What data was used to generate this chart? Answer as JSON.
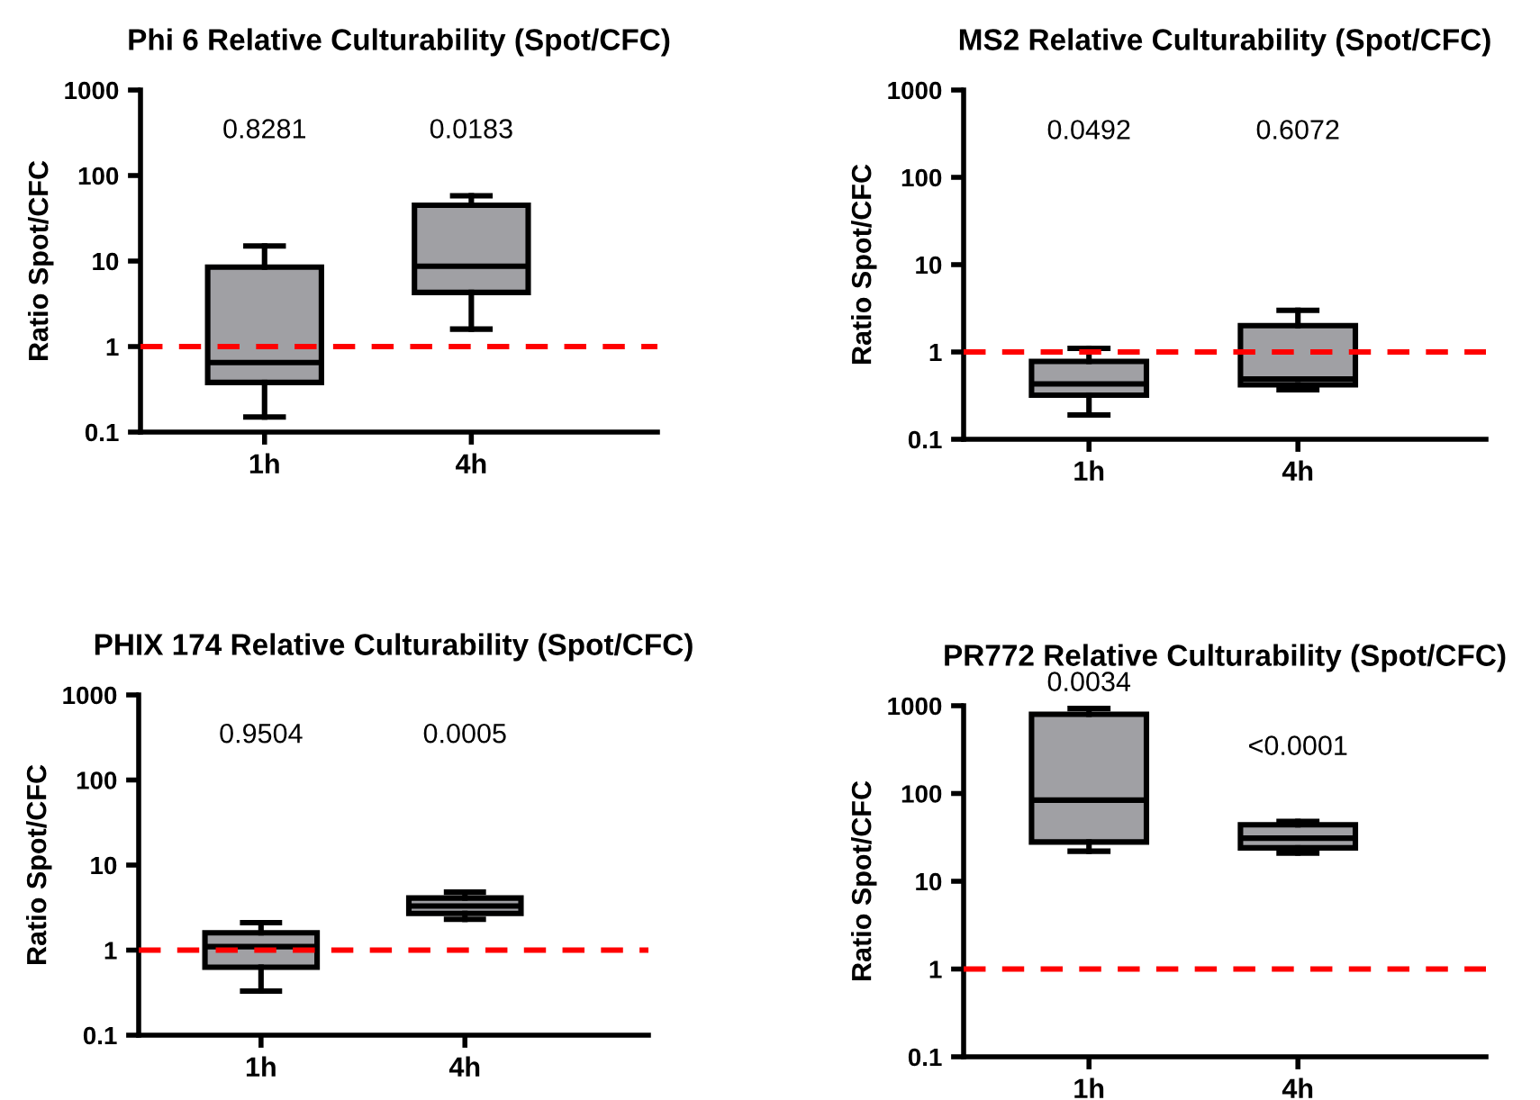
{
  "chart_data": [
    {
      "type": "box",
      "title": "Phi 6 Relative Culturability (Spot/CFC)",
      "ylabel": "Ratio Spot/CFC",
      "categories": [
        "1h",
        "4h"
      ],
      "log": true,
      "ylim": [
        0.1,
        1000
      ],
      "yticks": [
        0.1,
        1,
        10,
        100,
        1000
      ],
      "grid": false,
      "series": [
        {
          "color": "#a0a0a4",
          "boxes": [
            {
              "low": 0.15,
              "q1": 0.38,
              "median": 0.65,
              "q3": 8.5,
              "high": 15
            },
            {
              "low": 1.6,
              "q1": 4.3,
              "median": 8.7,
              "q3": 45,
              "high": 58
            }
          ]
        }
      ],
      "ref_lines": [
        {
          "axis": "y",
          "value": 1,
          "color": "#ff0000",
          "line_style": "dashed"
        }
      ],
      "annotations": [
        "0.8281",
        "0.0183"
      ]
    },
    {
      "type": "box",
      "title": "MS2 Relative Culturability (Spot/CFC)",
      "ylabel": "Ratio Spot/CFC",
      "categories": [
        "1h",
        "4h"
      ],
      "log": true,
      "ylim": [
        0.1,
        1000
      ],
      "yticks": [
        0.1,
        1,
        10,
        100,
        1000
      ],
      "grid": false,
      "series": [
        {
          "color": "#a0a0a4",
          "boxes": [
            {
              "low": 0.19,
              "q1": 0.32,
              "median": 0.43,
              "q3": 0.78,
              "high": 1.1
            },
            {
              "low": 0.37,
              "q1": 0.42,
              "median": 0.49,
              "q3": 2.0,
              "high": 3.0
            }
          ]
        }
      ],
      "ref_lines": [
        {
          "axis": "y",
          "value": 1,
          "color": "#ff0000",
          "line_style": "dashed"
        }
      ],
      "annotations": [
        "0.0492",
        "0.6072"
      ]
    },
    {
      "type": "box",
      "title": "PHIX 174 Relative Culturability (Spot/CFC)",
      "ylabel": "Ratio Spot/CFC",
      "categories": [
        "1h",
        "4h"
      ],
      "log": true,
      "ylim": [
        0.1,
        1000
      ],
      "yticks": [
        0.1,
        1,
        10,
        100,
        1000
      ],
      "grid": false,
      "series": [
        {
          "color": "#a0a0a4",
          "boxes": [
            {
              "low": 0.33,
              "q1": 0.63,
              "median": 1.1,
              "q3": 1.6,
              "high": 2.1
            },
            {
              "low": 2.3,
              "q1": 2.7,
              "median": 3.3,
              "q3": 4.1,
              "high": 4.8
            }
          ]
        }
      ],
      "ref_lines": [
        {
          "axis": "y",
          "value": 1,
          "color": "#ff0000",
          "line_style": "dashed"
        }
      ],
      "annotations": [
        "0.9504",
        "0.0005"
      ]
    },
    {
      "type": "box",
      "title": "PR772 Relative Culturability (Spot/CFC)",
      "ylabel": "Ratio Spot/CFC",
      "categories": [
        "1h",
        "4h"
      ],
      "log": true,
      "ylim": [
        0.1,
        1000
      ],
      "yticks": [
        0.1,
        1,
        10,
        100,
        1000
      ],
      "grid": false,
      "series": [
        {
          "color": "#a0a0a4",
          "boxes": [
            {
              "low": 22,
              "q1": 28,
              "median": 84,
              "q3": 800,
              "high": 930
            },
            {
              "low": 21,
              "q1": 24,
              "median": 31,
              "q3": 44,
              "high": 48
            }
          ]
        }
      ],
      "ref_lines": [
        {
          "axis": "y",
          "value": 1,
          "color": "#ff0000",
          "line_style": "dashed"
        }
      ],
      "annotations": [
        "0.0034",
        "<0.0001"
      ]
    }
  ]
}
